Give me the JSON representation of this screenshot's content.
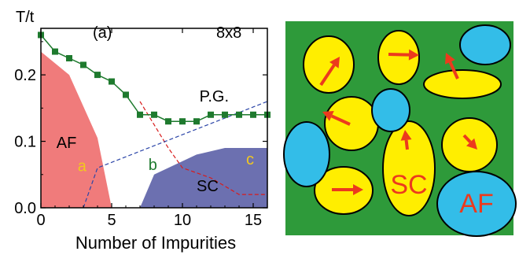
{
  "chart_data": {
    "type": "line",
    "panel_label": "(a)",
    "lattice_label": "8x8",
    "xlabel": "Number of Impurities",
    "ylabel": "T/t",
    "xlim": [
      0,
      16
    ],
    "ylim": [
      0,
      0.27
    ],
    "x_ticks": [
      "0",
      "5",
      "10",
      "15"
    ],
    "y_ticks": [
      "0.0",
      "0.1",
      "0.2"
    ],
    "colors": {
      "pseudogap_line": "#1e7a2e",
      "af_region": "#f07b7b",
      "sc_region": "#6c70b0",
      "crossover_line": "#d81b1b",
      "dashed_line": "#2b45a8",
      "label_a": "#f2c81e",
      "label_b": "#1e7a2e",
      "label_c": "#f2c81e"
    },
    "series": [
      {
        "x": [
          0,
          1,
          2,
          3,
          4,
          5,
          6,
          7,
          8,
          9,
          10,
          11,
          12,
          13,
          14,
          15,
          16
        ],
        "values": [
          0.26,
          0.235,
          0.225,
          0.215,
          0.2,
          0.19,
          0.17,
          0.14,
          0.14,
          0.13,
          0.13,
          0.13,
          0.14,
          0.14,
          0.14,
          0.14,
          0.14
        ]
      }
    ],
    "af_region": [
      [
        0,
        0.235
      ],
      [
        2,
        0.2
      ],
      [
        4,
        0.105
      ],
      [
        5,
        0
      ],
      [
        0,
        0
      ]
    ],
    "sc_region": [
      [
        7,
        0
      ],
      [
        8,
        0.05
      ],
      [
        11,
        0.08
      ],
      [
        13,
        0.09
      ],
      [
        16,
        0.09
      ],
      [
        16,
        0
      ],
      [
        7,
        0
      ]
    ],
    "red_dashed_line": [
      [
        7,
        0.16
      ],
      [
        9,
        0.09
      ],
      [
        10,
        0.06
      ],
      [
        12,
        0.045
      ],
      [
        14,
        0.02
      ],
      [
        16,
        0.02
      ]
    ],
    "blue_dashed_line": [
      [
        3,
        0
      ],
      [
        4,
        0.06
      ],
      [
        16,
        0.16
      ]
    ],
    "region_labels": [
      {
        "text": "AF",
        "x": 1.1,
        "y": 0.09,
        "color": "#000000"
      },
      {
        "text": "a",
        "x": 2.6,
        "y": 0.055,
        "color": "#f2c81e"
      },
      {
        "text": "b",
        "x": 7.6,
        "y": 0.057,
        "color": "#1e7a2e"
      },
      {
        "text": "P.G.",
        "x": 11.2,
        "y": 0.16,
        "color": "#000000"
      },
      {
        "text": "c",
        "x": 14.5,
        "y": 0.065,
        "color": "#f2c81e"
      },
      {
        "text": "SC",
        "x": 11.0,
        "y": 0.025,
        "color": "#000000"
      }
    ]
  },
  "schematic": {
    "background_color": "#2e9a3a",
    "sc_color": "#ffee00",
    "af_color": "#33bde8",
    "arrow_color": "#ec3a1d",
    "label_sc": "SC",
    "label_af": "AF"
  }
}
